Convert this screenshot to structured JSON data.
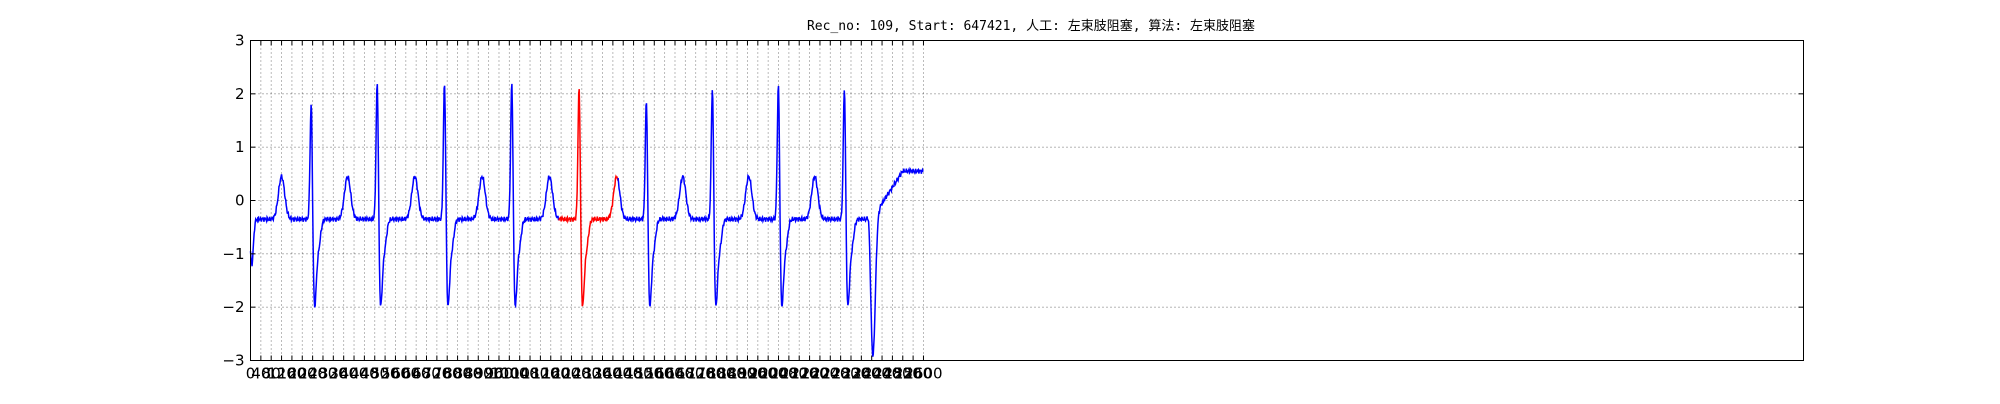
{
  "chart_data": {
    "type": "line",
    "title": "Rec_no: 109, Start: 647421, 人工: 左束肢阻塞, 算法: 左束肢阻塞",
    "xlabel": "",
    "ylabel": "",
    "xlim": [
      0,
      6000
    ],
    "ylim": [
      -3,
      3
    ],
    "grid": true,
    "x_ticks": [
      0,
      40,
      80,
      120,
      160,
      200,
      240,
      280,
      320,
      360,
      400,
      440,
      480,
      520,
      560,
      600,
      640,
      680,
      720,
      760,
      800,
      840,
      880,
      920,
      960,
      1000,
      1040,
      1080,
      1120,
      1160,
      1200,
      1240,
      1280,
      1320,
      1360,
      1400,
      1440,
      1480,
      1520,
      1560,
      1600,
      1640,
      1680,
      1720,
      1760,
      1800,
      1840,
      1880,
      1920,
      1960,
      2000,
      2040,
      2080,
      2120,
      2160,
      2200,
      2240,
      2280,
      2320,
      2360,
      2400,
      2440,
      2480,
      2520,
      2560,
      2600
    ],
    "x_tick_labels": [
      "0",
      "40",
      "80",
      "120",
      "160",
      "200",
      "240",
      "280",
      "320",
      "360",
      "400",
      "440",
      "480",
      "520",
      "560",
      "600",
      "640",
      "680",
      "720",
      "760",
      "800",
      "840",
      "880",
      "920",
      "960",
      "1000",
      "1040",
      "1080",
      "1120",
      "1160",
      "1200",
      "1240",
      "1280",
      "1320",
      "1360",
      "1400",
      "1440",
      "1480",
      "1520",
      "1560",
      "1600",
      "1640",
      "1680",
      "1720",
      "1760",
      "1800",
      "1840",
      "1880",
      "1920",
      "1960",
      "2000",
      "2040",
      "2080",
      "2120",
      "2160",
      "2200",
      "2240",
      "2280",
      "2320",
      "2360",
      "2400",
      "2440",
      "2480",
      "2520",
      "2560",
      "2600"
    ],
    "y_ticks": [
      -3,
      -2,
      -1,
      0,
      1,
      2,
      3
    ],
    "y_tick_labels": [
      "−3",
      "−2",
      "−1",
      "0",
      "1",
      "2",
      "3"
    ],
    "signal_end": 2600,
    "beat_peaks": [
      235,
      490,
      750,
      1010,
      1270,
      1530,
      1785,
      2040,
      2295
    ],
    "beat_peak_values": [
      2.2,
      2.6,
      2.6,
      2.6,
      2.5,
      2.25,
      2.5,
      2.55,
      2.5
    ],
    "highlight_range": [
      1190,
      1420
    ],
    "colors": {
      "normal": "#0000ff",
      "highlight": "#ff0000",
      "grid": "#555555",
      "axes": "#000000"
    }
  }
}
